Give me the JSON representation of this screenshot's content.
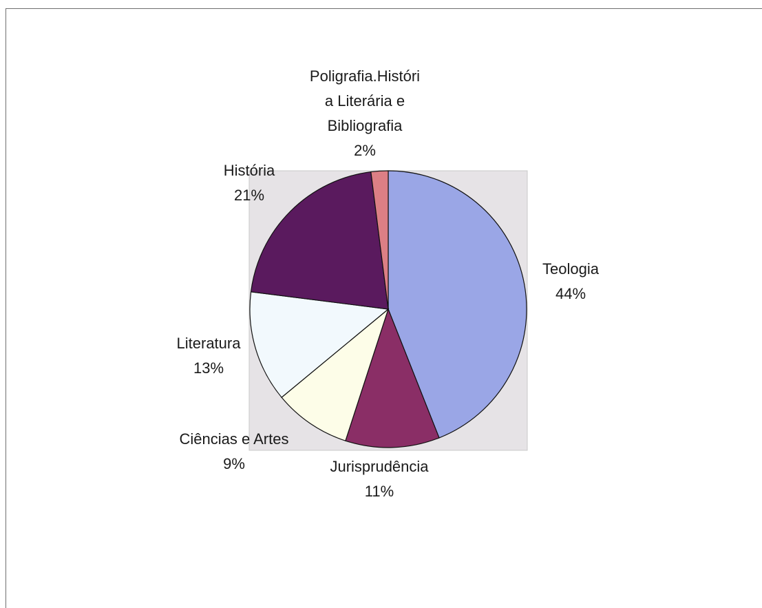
{
  "chart_data": {
    "type": "pie",
    "title": "",
    "slices": [
      {
        "label": "Teologia",
        "value": 44,
        "pct_text": "44%",
        "color": "#9aa6e6"
      },
      {
        "label": "Jurisprudência",
        "value": 11,
        "pct_text": "11%",
        "color": "#8a2e66"
      },
      {
        "label": "Ciências e Artes",
        "value": 9,
        "pct_text": "9%",
        "color": "#fdfde8"
      },
      {
        "label": "Literatura",
        "value": 13,
        "pct_text": "13%",
        "color": "#f2f9fd"
      },
      {
        "label": "História",
        "value": 21,
        "pct_text": "21%",
        "color": "#5a1a5e"
      },
      {
        "label": "Poligrafia.Históri a Literária e Bibliografia",
        "label_lines": [
          "Poligrafia.Históri",
          "a Literária e",
          "Bibliografia"
        ],
        "value": 2,
        "pct_text": "2%",
        "color": "#dc7f85"
      }
    ],
    "plot_area_color": "#e6e3e6",
    "legend": "none",
    "data_labels": "category and percentage"
  }
}
